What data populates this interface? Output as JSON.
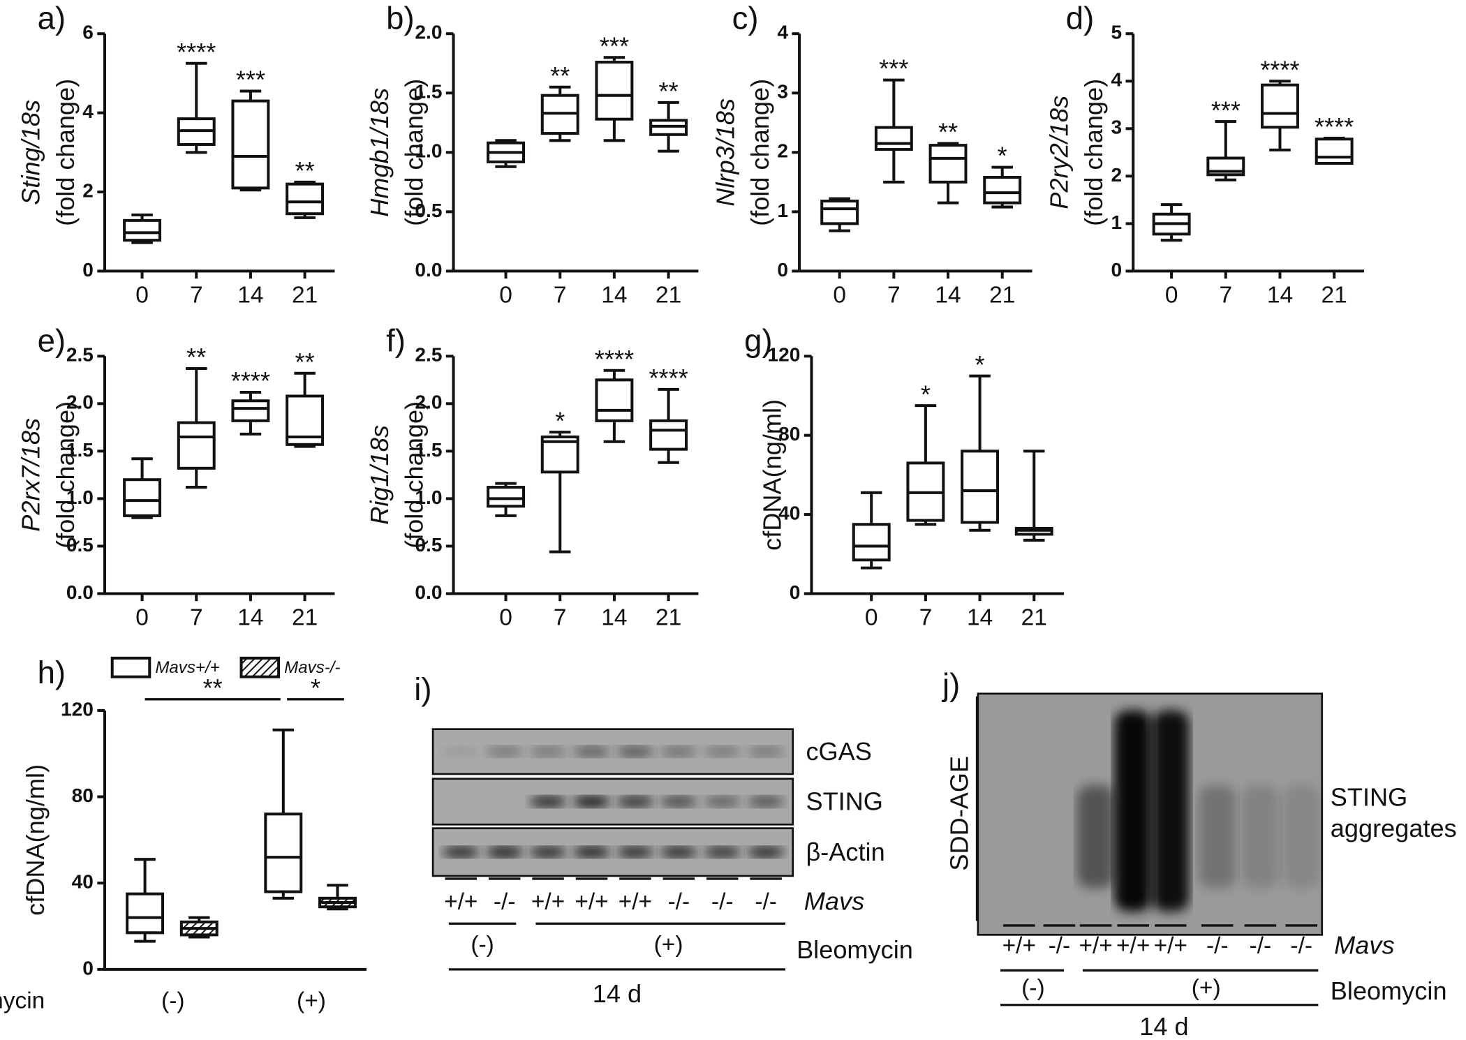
{
  "chart_data": [
    {
      "type": "box",
      "panel": "a)",
      "ylabel": [
        "Sting/18s",
        "(fold change)"
      ],
      "categories": [
        "0",
        "7",
        "14",
        "21"
      ],
      "ylim": [
        0,
        6
      ],
      "yticks": [
        0,
        2,
        4,
        6
      ],
      "boxes": [
        {
          "min": 0.72,
          "q1": 0.78,
          "median": 0.97,
          "q3": 1.28,
          "max": 1.42
        },
        {
          "min": 3.0,
          "q1": 3.2,
          "median": 3.55,
          "q3": 3.85,
          "max": 5.25
        },
        {
          "min": 2.05,
          "q1": 2.1,
          "median": 2.9,
          "q3": 4.3,
          "max": 4.55
        },
        {
          "min": 1.35,
          "q1": 1.45,
          "median": 1.75,
          "q3": 2.2,
          "max": 2.25
        }
      ],
      "annotations": [
        null,
        "****",
        "***",
        "**"
      ]
    },
    {
      "type": "box",
      "panel": "b)",
      "ylabel": [
        "Hmgb1/18s",
        "(fold change)"
      ],
      "categories": [
        "0",
        "7",
        "14",
        "21"
      ],
      "ylim": [
        0,
        2
      ],
      "yticks": [
        {
          "value": 0,
          "label": "0.0"
        },
        {
          "value": 0.5,
          "label": "0.5"
        },
        {
          "value": 1,
          "label": "1.0"
        },
        {
          "value": 1.5,
          "label": "1.5"
        },
        {
          "value": 2,
          "label": "2.0"
        }
      ],
      "boxes": [
        {
          "min": 0.88,
          "q1": 0.92,
          "median": 1.0,
          "q3": 1.08,
          "max": 1.1
        },
        {
          "min": 1.1,
          "q1": 1.16,
          "median": 1.33,
          "q3": 1.48,
          "max": 1.55
        },
        {
          "min": 1.1,
          "q1": 1.28,
          "median": 1.48,
          "q3": 1.76,
          "max": 1.8
        },
        {
          "min": 1.01,
          "q1": 1.15,
          "median": 1.22,
          "q3": 1.27,
          "max": 1.42
        }
      ],
      "annotations": [
        null,
        "**",
        "***",
        "**"
      ]
    },
    {
      "type": "box",
      "panel": "c)",
      "ylabel": [
        "Nlrp3/18s",
        "(fold change)"
      ],
      "categories": [
        "0",
        "7",
        "14",
        "21"
      ],
      "ylim": [
        0,
        4
      ],
      "yticks": [
        0,
        1,
        2,
        3,
        4
      ],
      "boxes": [
        {
          "min": 0.68,
          "q1": 0.8,
          "median": 1.05,
          "q3": 1.18,
          "max": 1.22
        },
        {
          "min": 1.5,
          "q1": 2.05,
          "median": 2.15,
          "q3": 2.42,
          "max": 3.22
        },
        {
          "min": 1.15,
          "q1": 1.5,
          "median": 1.9,
          "q3": 2.12,
          "max": 2.15
        },
        {
          "min": 1.08,
          "q1": 1.15,
          "median": 1.32,
          "q3": 1.58,
          "max": 1.75
        }
      ],
      "annotations": [
        null,
        "***",
        "**",
        "*"
      ]
    },
    {
      "type": "box",
      "panel": "d)",
      "ylabel": [
        "P2ry2/18s",
        "(fold change)"
      ],
      "categories": [
        "0",
        "7",
        "14",
        "21"
      ],
      "ylim": [
        0,
        5
      ],
      "yticks": [
        0,
        1,
        2,
        3,
        4,
        5
      ],
      "boxes": [
        {
          "min": 0.65,
          "q1": 0.78,
          "median": 1.0,
          "q3": 1.2,
          "max": 1.4
        },
        {
          "min": 1.92,
          "q1": 2.03,
          "median": 2.1,
          "q3": 2.38,
          "max": 3.15
        },
        {
          "min": 2.55,
          "q1": 3.03,
          "median": 3.32,
          "q3": 3.92,
          "max": 4.0
        },
        {
          "min": 2.27,
          "q1": 2.27,
          "median": 2.4,
          "q3": 2.78,
          "max": 2.8
        }
      ],
      "annotations": [
        null,
        "***",
        "****",
        "****"
      ]
    },
    {
      "type": "box",
      "panel": "e)",
      "ylabel": [
        "P2rx7/18s",
        "(fold change)"
      ],
      "categories": [
        "0",
        "7",
        "14",
        "21"
      ],
      "ylim": [
        0,
        2.5
      ],
      "yticks": [
        {
          "value": 0,
          "label": "0.0"
        },
        {
          "value": 0.5,
          "label": "0.5"
        },
        {
          "value": 1,
          "label": "1.0"
        },
        {
          "value": 1.5,
          "label": "1.5"
        },
        {
          "value": 2,
          "label": "2.0"
        },
        {
          "value": 2.5,
          "label": "2.5"
        }
      ],
      "boxes": [
        {
          "min": 0.8,
          "q1": 0.82,
          "median": 0.98,
          "q3": 1.2,
          "max": 1.42
        },
        {
          "min": 1.12,
          "q1": 1.32,
          "median": 1.65,
          "q3": 1.8,
          "max": 2.37
        },
        {
          "min": 1.68,
          "q1": 1.82,
          "median": 1.95,
          "q3": 2.03,
          "max": 2.12
        },
        {
          "min": 1.55,
          "q1": 1.57,
          "median": 1.65,
          "q3": 2.08,
          "max": 2.32
        }
      ],
      "annotations": [
        null,
        "**",
        "****",
        "**"
      ]
    },
    {
      "type": "box",
      "panel": "f)",
      "ylabel": [
        "Rig1/18s",
        "(fold change)"
      ],
      "categories": [
        "0",
        "7",
        "14",
        "21"
      ],
      "ylim": [
        0,
        2.5
      ],
      "yticks": [
        {
          "value": 0,
          "label": "0.0"
        },
        {
          "value": 0.5,
          "label": "0.5"
        },
        {
          "value": 1,
          "label": "1.0"
        },
        {
          "value": 1.5,
          "label": "1.5"
        },
        {
          "value": 2,
          "label": "2.0"
        },
        {
          "value": 2.5,
          "label": "2.5"
        }
      ],
      "boxes": [
        {
          "min": 0.82,
          "q1": 0.92,
          "median": 1.0,
          "q3": 1.12,
          "max": 1.16
        },
        {
          "min": 0.44,
          "q1": 1.28,
          "median": 1.6,
          "q3": 1.65,
          "max": 1.7
        },
        {
          "min": 1.6,
          "q1": 1.82,
          "median": 1.93,
          "q3": 2.25,
          "max": 2.35
        },
        {
          "min": 1.38,
          "q1": 1.52,
          "median": 1.72,
          "q3": 1.82,
          "max": 2.15
        }
      ],
      "annotations": [
        null,
        "*",
        "****",
        "****"
      ]
    },
    {
      "type": "box",
      "panel": "g)",
      "ylabel": [
        "cfDNA(ng/ml)"
      ],
      "categories": [
        "0",
        "7",
        "14",
        "21"
      ],
      "ylim": [
        0,
        120
      ],
      "yticks": [
        0,
        40,
        80,
        120
      ],
      "boxes": [
        {
          "min": 13,
          "q1": 17,
          "median": 24,
          "q3": 35,
          "max": 51
        },
        {
          "min": 35,
          "q1": 37,
          "median": 51,
          "q3": 66,
          "max": 95
        },
        {
          "min": 32,
          "q1": 36,
          "median": 52,
          "q3": 72,
          "max": 110
        },
        {
          "min": 27,
          "q1": 30,
          "median": 32,
          "q3": 33,
          "max": 72
        }
      ],
      "annotations": [
        null,
        "*",
        "*",
        null
      ]
    },
    {
      "type": "grouped-box",
      "panel": "h)",
      "ylabel": [
        "cfDNA(ng/ml)"
      ],
      "xlabel": "Bleomycin",
      "categories": [
        "(-)",
        "(+)"
      ],
      "ylim": [
        0,
        120
      ],
      "yticks": [
        0,
        40,
        80,
        120
      ],
      "series": [
        {
          "name": "Mavs+/+",
          "fill": "white",
          "boxes": [
            {
              "min": 13,
              "q1": 17,
              "median": 24,
              "q3": 35,
              "max": 51
            },
            {
              "min": 33,
              "q1": 36,
              "median": 52,
              "q3": 72,
              "max": 111
            }
          ]
        },
        {
          "name": "Mavs-/-",
          "fill": "hatch",
          "boxes": [
            {
              "min": 15,
              "q1": 16,
              "median": 19,
              "q3": 22,
              "max": 24
            },
            {
              "min": 28,
              "q1": 29,
              "median": 31,
              "q3": 33,
              "max": 39
            }
          ]
        }
      ],
      "brackets": [
        "**",
        "*"
      ]
    }
  ],
  "blots": [
    {
      "panel": "i)",
      "rows": [
        "cGAS",
        "STING",
        "β-Actin"
      ],
      "lanes": [
        "+/+",
        "-/-",
        "+/+",
        "+/+",
        "+/+",
        "-/-",
        "-/-",
        "-/-"
      ],
      "lane_title": "Mavs",
      "groups": [
        "(-)",
        "(+)"
      ],
      "treatment": "Bleomycin",
      "time": "14 d"
    },
    {
      "panel": "j)",
      "method": "SDD-AGE",
      "target": [
        "STING",
        "aggregates"
      ],
      "lanes": [
        "+/+",
        "-/-",
        "+/+",
        "+/+",
        "+/+",
        "-/-",
        "-/-",
        "-/-"
      ],
      "lane_title": "Mavs",
      "groups": [
        "(-)",
        "(+)"
      ],
      "treatment": "Bleomycin",
      "time": "14 d"
    }
  ]
}
